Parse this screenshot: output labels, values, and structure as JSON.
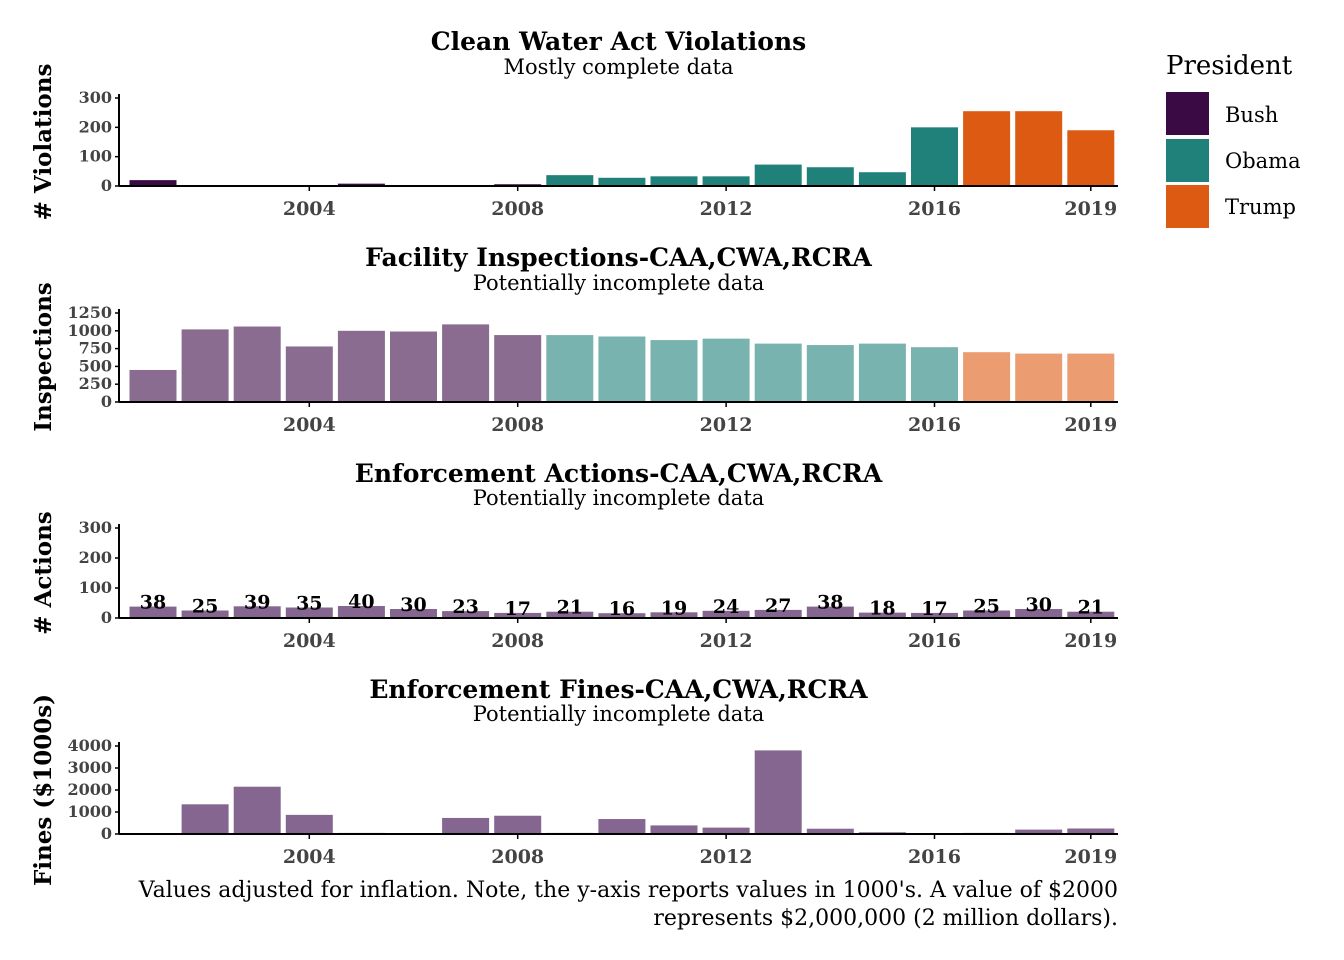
{
  "legend": {
    "title": "President",
    "items": [
      {
        "label": "Bush",
        "color": "#3a0a45"
      },
      {
        "label": "Obama",
        "color": "#20817b"
      },
      {
        "label": "Trump",
        "color": "#dd5a13"
      }
    ]
  },
  "caption": {
    "line1": "Values adjusted for inflation. Note, the y-axis reports values in 1000's. A value of $2000",
    "line2": "represents $2,000,000 (2 million dollars)."
  },
  "chart_data": [
    {
      "type": "bar",
      "title": "Clean Water Act Violations",
      "subtitle": "Mostly complete data",
      "ylabel": "# Violations",
      "ylim": [
        0,
        300
      ],
      "yticks": [
        0,
        100,
        200,
        300
      ],
      "xticks": [
        "2004",
        "2008",
        "2012",
        "2016",
        "2019"
      ],
      "faded": false,
      "show_labels": false,
      "categories": [
        "2001",
        "2002",
        "2003",
        "2004",
        "2005",
        "2006",
        "2007",
        "2008",
        "2009",
        "2010",
        "2011",
        "2012",
        "2013",
        "2014",
        "2015",
        "2016",
        "2017",
        "2018",
        "2019"
      ],
      "president": [
        "Bush",
        "Bush",
        "Bush",
        "Bush",
        "Bush",
        "Bush",
        "Bush",
        "Bush",
        "Obama",
        "Obama",
        "Obama",
        "Obama",
        "Obama",
        "Obama",
        "Obama",
        "Obama",
        "Trump",
        "Trump",
        "Trump"
      ],
      "values": [
        20,
        3,
        2,
        2,
        8,
        2,
        2,
        6,
        37,
        28,
        33,
        33,
        73,
        64,
        47,
        200,
        255,
        255,
        190
      ]
    },
    {
      "type": "bar",
      "title": "Facility Inspections-CAA,CWA,RCRA",
      "subtitle": "Potentially incomplete data",
      "ylabel": "Inspections",
      "ylim": [
        0,
        1250
      ],
      "yticks": [
        0,
        250,
        500,
        750,
        1000,
        1250
      ],
      "xticks": [
        "2004",
        "2008",
        "2012",
        "2016",
        "2019"
      ],
      "faded": true,
      "show_labels": false,
      "categories": [
        "2001",
        "2002",
        "2003",
        "2004",
        "2005",
        "2006",
        "2007",
        "2008",
        "2009",
        "2010",
        "2011",
        "2012",
        "2013",
        "2014",
        "2015",
        "2016",
        "2017",
        "2018",
        "2019"
      ],
      "president": [
        "Bush",
        "Bush",
        "Bush",
        "Bush",
        "Bush",
        "Bush",
        "Bush",
        "Bush",
        "Obama",
        "Obama",
        "Obama",
        "Obama",
        "Obama",
        "Obama",
        "Obama",
        "Obama",
        "Trump",
        "Trump",
        "Trump"
      ],
      "values": [
        450,
        1020,
        1060,
        780,
        1000,
        990,
        1090,
        940,
        940,
        920,
        870,
        890,
        820,
        800,
        820,
        770,
        700,
        680,
        680
      ]
    },
    {
      "type": "bar",
      "title": "Enforcement Actions-CAA,CWA,RCRA",
      "subtitle": "Potentially incomplete data",
      "ylabel": "# Actions",
      "ylim": [
        0,
        300
      ],
      "yticks": [
        0,
        100,
        200,
        300
      ],
      "xticks": [
        "2004",
        "2008",
        "2012",
        "2016",
        "2019"
      ],
      "faded": true,
      "single_color": "#846690",
      "show_labels": true,
      "categories": [
        "2001",
        "2002",
        "2003",
        "2004",
        "2005",
        "2006",
        "2007",
        "2008",
        "2009",
        "2010",
        "2011",
        "2012",
        "2013",
        "2014",
        "2015",
        "2016",
        "2017",
        "2018",
        "2019"
      ],
      "values": [
        38,
        25,
        39,
        35,
        40,
        30,
        23,
        17,
        21,
        16,
        19,
        24,
        27,
        38,
        18,
        17,
        25,
        30,
        21
      ]
    },
    {
      "type": "bar",
      "title": "Enforcement Fines-CAA,CWA,RCRA",
      "subtitle": "Potentially incomplete data",
      "ylabel": "Fines ($1000s)",
      "ylim": [
        0,
        4000
      ],
      "yticks": [
        0,
        1000,
        2000,
        3000,
        4000
      ],
      "xticks": [
        "2004",
        "2008",
        "2012",
        "2016",
        "2019"
      ],
      "faded": true,
      "single_color": "#846690",
      "show_labels": false,
      "categories": [
        "2001",
        "2002",
        "2003",
        "2004",
        "2005",
        "2006",
        "2007",
        "2008",
        "2009",
        "2010",
        "2011",
        "2012",
        "2013",
        "2014",
        "2015",
        "2016",
        "2017",
        "2018",
        "2019"
      ],
      "values": [
        0,
        1350,
        2150,
        870,
        50,
        0,
        730,
        830,
        50,
        680,
        390,
        290,
        3800,
        240,
        80,
        30,
        50,
        200,
        250
      ]
    }
  ]
}
